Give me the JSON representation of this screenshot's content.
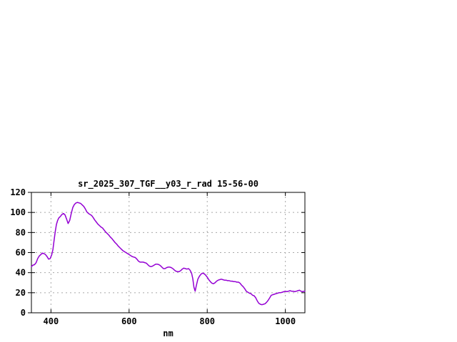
{
  "window": {
    "background": "#ffffff"
  },
  "colors": {
    "line": "#9400d3",
    "grid": "#a8a8a8",
    "border": "#000000",
    "text": "#000000",
    "background": "#ffffff"
  },
  "chart_data": {
    "type": "line",
    "title": "sr_2025_307_TGF__y03_r_rad 15-56-00",
    "xlabel": "nm",
    "ylabel": "",
    "xlim": [
      350,
      1050
    ],
    "ylim": [
      0,
      120
    ],
    "x_ticks": [
      400,
      600,
      800,
      1000
    ],
    "y_ticks": [
      0,
      20,
      40,
      60,
      80,
      100,
      120
    ],
    "grid": true,
    "legend_position": "none",
    "series": [
      {
        "name": "sr_2025_307_TGF__y03_r_rad",
        "color": "#9400d3",
        "points": [
          [
            350,
            46
          ],
          [
            354,
            47.5
          ],
          [
            358,
            48
          ],
          [
            362,
            50
          ],
          [
            366,
            54
          ],
          [
            370,
            56.5
          ],
          [
            374,
            58
          ],
          [
            378,
            59.5
          ],
          [
            382,
            59
          ],
          [
            386,
            58
          ],
          [
            390,
            56
          ],
          [
            394,
            53.5
          ],
          [
            398,
            54
          ],
          [
            402,
            58
          ],
          [
            405,
            63
          ],
          [
            408,
            72
          ],
          [
            411,
            81
          ],
          [
            414,
            88
          ],
          [
            417,
            92
          ],
          [
            420,
            94.5
          ],
          [
            424,
            96
          ],
          [
            428,
            98
          ],
          [
            432,
            99
          ],
          [
            436,
            97.5
          ],
          [
            440,
            93.5
          ],
          [
            444,
            89
          ],
          [
            448,
            92
          ],
          [
            452,
            99
          ],
          [
            456,
            105
          ],
          [
            460,
            108
          ],
          [
            464,
            109.5
          ],
          [
            468,
            110
          ],
          [
            472,
            109.5
          ],
          [
            476,
            109
          ],
          [
            480,
            107.5
          ],
          [
            484,
            106
          ],
          [
            488,
            103.5
          ],
          [
            492,
            100.5
          ],
          [
            496,
            99
          ],
          [
            500,
            98
          ],
          [
            504,
            97
          ],
          [
            508,
            95
          ],
          [
            512,
            92.5
          ],
          [
            516,
            90.5
          ],
          [
            520,
            88.5
          ],
          [
            524,
            87
          ],
          [
            528,
            85.5
          ],
          [
            532,
            84.5
          ],
          [
            536,
            82.5
          ],
          [
            540,
            80.5
          ],
          [
            544,
            79
          ],
          [
            548,
            77.5
          ],
          [
            552,
            75.5
          ],
          [
            556,
            74
          ],
          [
            560,
            72
          ],
          [
            564,
            70
          ],
          [
            568,
            68.5
          ],
          [
            572,
            66.5
          ],
          [
            576,
            65
          ],
          [
            580,
            63.5
          ],
          [
            584,
            62
          ],
          [
            588,
            61
          ],
          [
            592,
            60
          ],
          [
            596,
            59
          ],
          [
            600,
            58
          ],
          [
            604,
            57
          ],
          [
            608,
            56
          ],
          [
            612,
            55.5
          ],
          [
            616,
            55
          ],
          [
            620,
            53.5
          ],
          [
            624,
            51.5
          ],
          [
            628,
            50.5
          ],
          [
            632,
            50.5
          ],
          [
            636,
            50.5
          ],
          [
            640,
            50
          ],
          [
            644,
            49.5
          ],
          [
            648,
            48
          ],
          [
            652,
            46.5
          ],
          [
            656,
            46
          ],
          [
            660,
            46.5
          ],
          [
            664,
            47.5
          ],
          [
            668,
            48.5
          ],
          [
            672,
            48.5
          ],
          [
            676,
            48
          ],
          [
            680,
            47
          ],
          [
            684,
            45.5
          ],
          [
            688,
            44
          ],
          [
            692,
            44
          ],
          [
            696,
            45
          ],
          [
            700,
            45.5
          ],
          [
            704,
            45.5
          ],
          [
            708,
            45
          ],
          [
            712,
            44
          ],
          [
            716,
            42.5
          ],
          [
            720,
            41.5
          ],
          [
            724,
            41
          ],
          [
            728,
            41
          ],
          [
            732,
            42
          ],
          [
            736,
            43.5
          ],
          [
            740,
            44.5
          ],
          [
            744,
            44
          ],
          [
            748,
            43.5
          ],
          [
            752,
            44
          ],
          [
            756,
            42.5
          ],
          [
            760,
            39.5
          ],
          [
            763,
            34
          ],
          [
            766,
            25.5
          ],
          [
            769,
            21.5
          ],
          [
            772,
            27
          ],
          [
            776,
            33.5
          ],
          [
            780,
            36.5
          ],
          [
            784,
            38.5
          ],
          [
            788,
            39.5
          ],
          [
            792,
            39
          ],
          [
            796,
            37.5
          ],
          [
            800,
            35.5
          ],
          [
            804,
            33
          ],
          [
            808,
            31
          ],
          [
            812,
            29.5
          ],
          [
            816,
            29
          ],
          [
            820,
            30
          ],
          [
            824,
            31.5
          ],
          [
            828,
            32.5
          ],
          [
            832,
            33
          ],
          [
            836,
            33.5
          ],
          [
            840,
            33
          ],
          [
            844,
            32.5
          ],
          [
            848,
            32.5
          ],
          [
            852,
            32
          ],
          [
            856,
            32
          ],
          [
            860,
            31.5
          ],
          [
            864,
            31.5
          ],
          [
            868,
            31
          ],
          [
            872,
            31
          ],
          [
            876,
            30.5
          ],
          [
            880,
            30.5
          ],
          [
            884,
            29.5
          ],
          [
            888,
            27.5
          ],
          [
            892,
            26
          ],
          [
            896,
            24
          ],
          [
            900,
            21.5
          ],
          [
            904,
            20.5
          ],
          [
            908,
            19.5
          ],
          [
            912,
            19
          ],
          [
            916,
            17.5
          ],
          [
            920,
            17
          ],
          [
            924,
            15
          ],
          [
            928,
            12
          ],
          [
            932,
            9.5
          ],
          [
            936,
            8.5
          ],
          [
            940,
            8
          ],
          [
            944,
            8.5
          ],
          [
            948,
            9
          ],
          [
            952,
            10.5
          ],
          [
            956,
            12.5
          ],
          [
            960,
            15
          ],
          [
            964,
            17.5
          ],
          [
            968,
            18
          ],
          [
            972,
            18.5
          ],
          [
            976,
            19
          ],
          [
            980,
            19.5
          ],
          [
            984,
            20
          ],
          [
            988,
            20
          ],
          [
            992,
            20.5
          ],
          [
            996,
            21
          ],
          [
            1000,
            21.5
          ],
          [
            1004,
            21
          ],
          [
            1008,
            21.5
          ],
          [
            1012,
            22
          ],
          [
            1016,
            21.5
          ],
          [
            1020,
            21.5
          ],
          [
            1024,
            21
          ],
          [
            1028,
            21.5
          ],
          [
            1032,
            22
          ],
          [
            1036,
            22.5
          ],
          [
            1040,
            21.5
          ],
          [
            1044,
            21
          ],
          [
            1048,
            21.5
          ],
          [
            1050,
            21.5
          ]
        ]
      }
    ]
  }
}
